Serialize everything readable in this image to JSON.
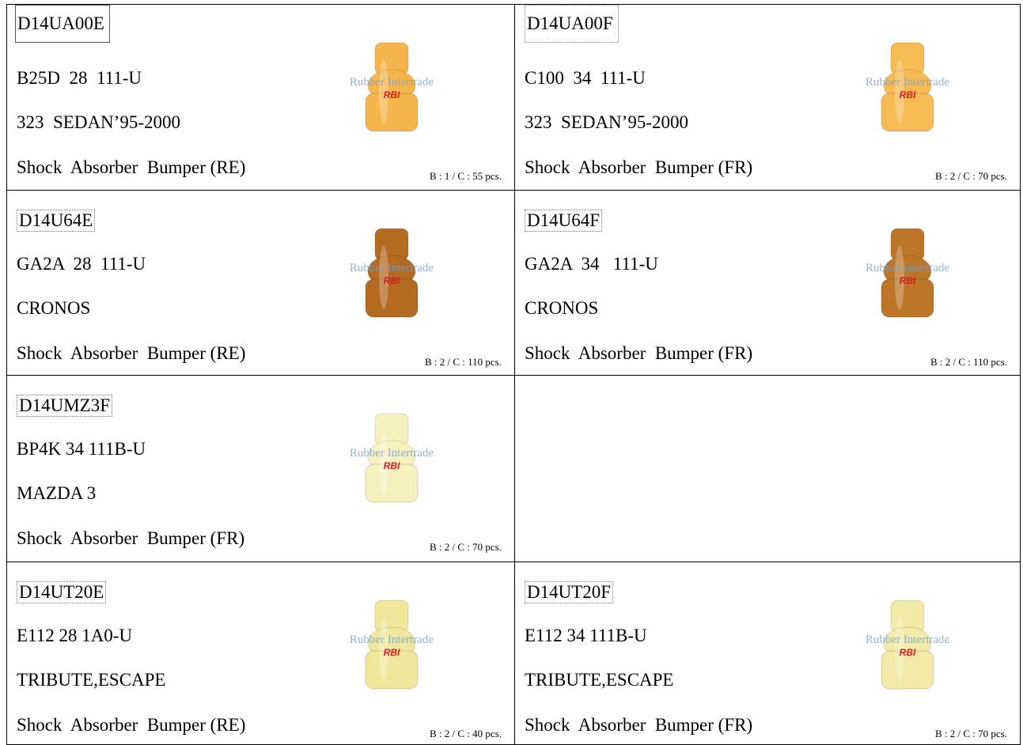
{
  "watermark": "Rubber Intertrade",
  "logo": "RBI",
  "rows": [
    [
      {
        "code": "D14UA00E",
        "part": "B25D  28  111-U",
        "model": "323  SEDAN’95-2000",
        "name": "Shock  Absorber  Bumper (RE)",
        "pack": "B : 1 / C : 55 pcs.",
        "color": "#f4b64c"
      },
      {
        "code": "D14UA00F",
        "part": "C100  34  111-U",
        "model": "323  SEDAN’95-2000",
        "name": "Shock  Absorber  Bumper (FR)",
        "pack": "B : 2 / C : 70 pcs.",
        "color": "#f6bb55"
      }
    ],
    [
      {
        "code": "D14U64E",
        "part": "GA2A  28  111-U",
        "model": "CRONOS",
        "name": "Shock  Absorber  Bumper (RE)",
        "pack": "B : 2 / C : 110 pcs.",
        "color": "#b56a22"
      },
      {
        "code": "D14U64F",
        "part": "GA2A  34   111-U",
        "model": "CRONOS",
        "name": "Shock  Absorber  Bumper (FR)",
        "pack": "B : 2 / C : 110 pcs.",
        "color": "#bd7628"
      }
    ],
    [
      {
        "code": "D14UMZ3F",
        "part": "BP4K 34 111B-U",
        "model": "MAZDA 3",
        "name": "Shock  Absorber  Bumper (FR)",
        "pack": "B : 2 / C : 70 pcs.",
        "color": "#f6f0bf"
      }
    ],
    [
      {
        "code": "D14UT20E",
        "part": "E112 28 1A0-U",
        "model": "TRIBUTE,ESCAPE",
        "name": "Shock  Absorber  Bumper (RE)",
        "pack": "B : 2 / C : 40 pcs.",
        "color": "#f0e79c"
      },
      {
        "code": "D14UT20F",
        "part": "E112 34 111B-U",
        "model": "TRIBUTE,ESCAPE",
        "name": "Shock  Absorber  Bumper (FR)",
        "pack": "B : 2 / C : 70 pcs.",
        "color": "#f2eaa6"
      }
    ]
  ]
}
